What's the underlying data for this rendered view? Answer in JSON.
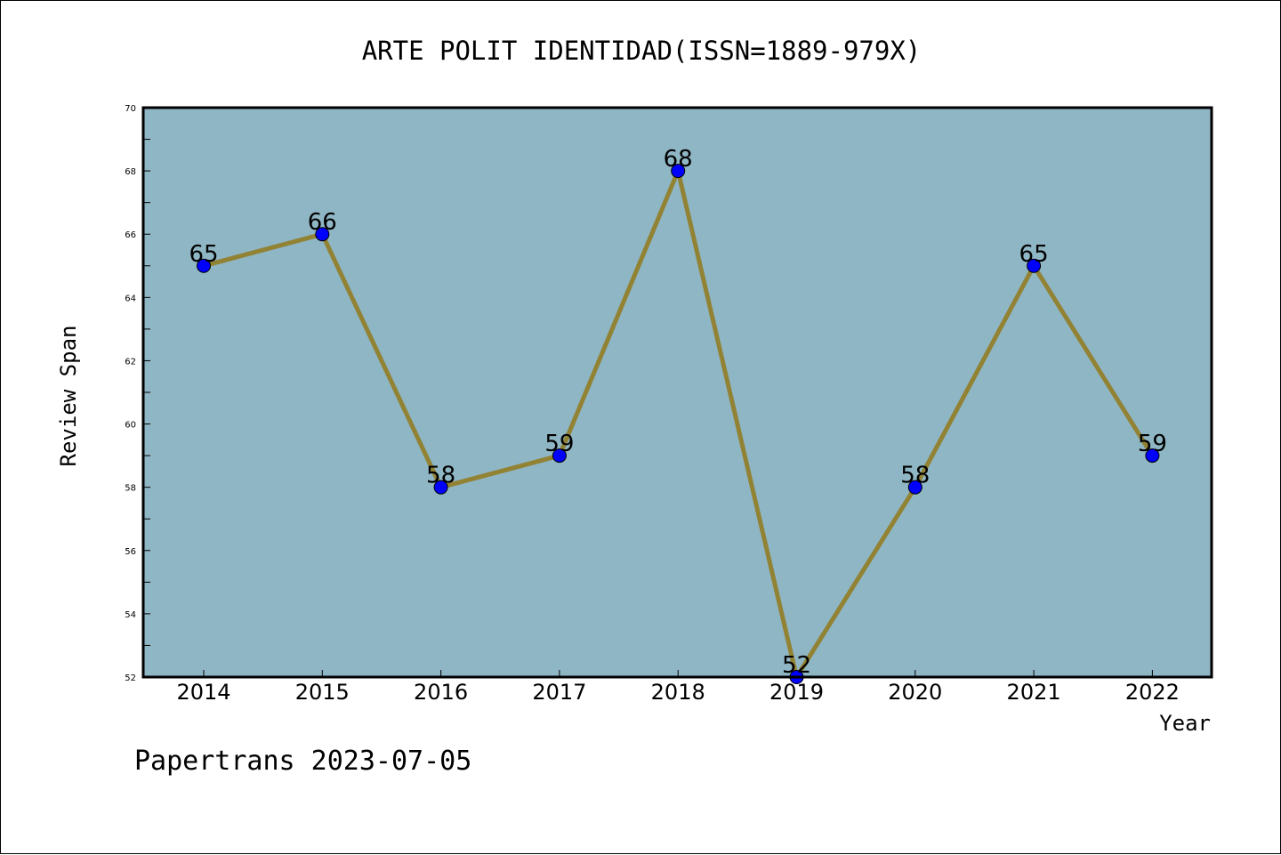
{
  "chart_data": {
    "type": "line",
    "title": "ARTE POLIT IDENTIDAD(ISSN=1889-979X)",
    "xlabel": "Year",
    "ylabel": "Review Span",
    "categories": [
      "2014",
      "2015",
      "2016",
      "2017",
      "2018",
      "2019",
      "2020",
      "2021",
      "2022"
    ],
    "series": [
      {
        "values": [
          65,
          66,
          58,
          59,
          68,
          52,
          58,
          65,
          59
        ]
      }
    ],
    "ylim": [
      52,
      70
    ],
    "y_ticks": [
      52,
      54,
      56,
      58,
      60,
      62,
      64,
      66,
      68,
      70
    ],
    "grid": false,
    "data_labels": true
  },
  "footer": "Papertrans 2023-07-05",
  "colors": {
    "plot_background": "#8fb6c4",
    "line": "#928234",
    "marker": "#0000ff",
    "frame": "#000000"
  }
}
